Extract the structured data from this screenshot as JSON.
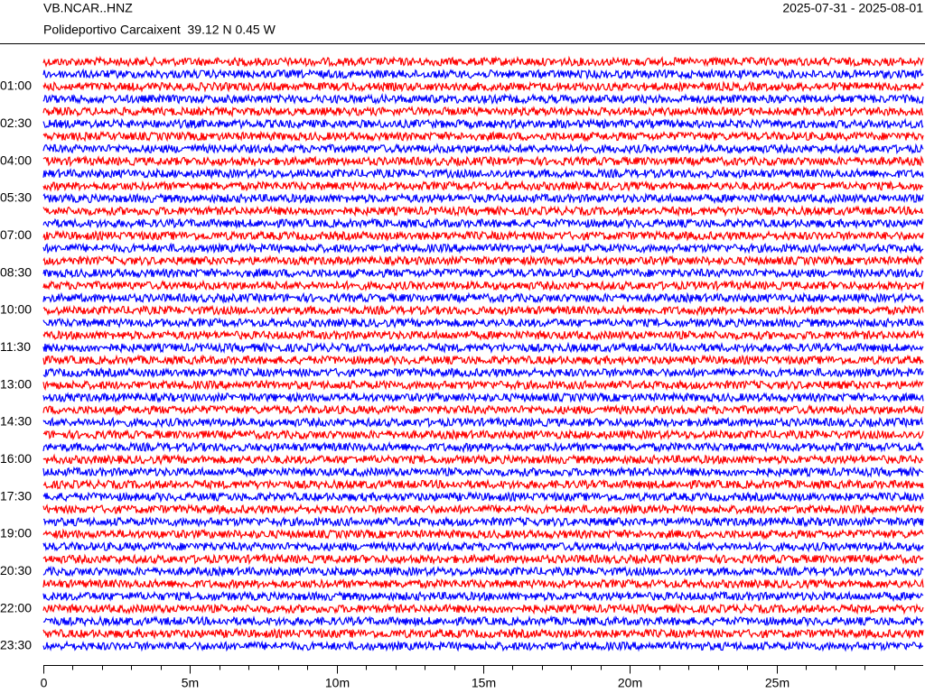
{
  "chart_data": {
    "type": "helicorder",
    "title": "VB.NCAR..HNZ",
    "subtitle": "Polideportivo Carcaixent  39.12 N 0.45 W",
    "date_range": "2025-07-31 - 2025-08-01",
    "xlim": [
      0,
      30
    ],
    "xticks": [
      0,
      {
        "value": 5,
        "label": "5m"
      },
      {
        "value": 10,
        "label": "10m"
      },
      {
        "value": 15,
        "label": "15m"
      },
      {
        "value": 20,
        "label": "20m"
      },
      {
        "value": 25,
        "label": "25m"
      }
    ],
    "xminorticks": [
      1,
      2,
      3,
      4,
      6,
      7,
      8,
      9,
      11,
      12,
      13,
      14,
      16,
      17,
      18,
      19,
      21,
      22,
      23,
      24,
      26,
      27,
      28,
      29
    ],
    "ylim": [
      0,
      1410
    ],
    "yticks": [
      {
        "value": 60,
        "label": "01:00"
      },
      {
        "value": 150,
        "label": "02:30"
      },
      {
        "value": 240,
        "label": "04:00"
      },
      {
        "value": 330,
        "label": "05:30"
      },
      {
        "value": 420,
        "label": "07:00"
      },
      {
        "value": 510,
        "label": "08:30"
      },
      {
        "value": 600,
        "label": "10:00"
      },
      {
        "value": 690,
        "label": "11:30"
      },
      {
        "value": 780,
        "label": "13:00"
      },
      {
        "value": 870,
        "label": "14:30"
      },
      {
        "value": 960,
        "label": "16:00"
      },
      {
        "value": 1050,
        "label": "17:30"
      },
      {
        "value": 1140,
        "label": "19:00"
      },
      {
        "value": 1230,
        "label": "20:30"
      },
      {
        "value": 1320,
        "label": "22:00"
      },
      {
        "value": 1410,
        "label": "23:30"
      }
    ],
    "trace_starts": [
      0,
      30,
      60,
      90,
      120,
      150,
      180,
      210,
      240,
      270,
      300,
      330,
      360,
      390,
      420,
      450,
      480,
      510,
      540,
      570,
      600,
      630,
      660,
      690,
      720,
      750,
      780,
      810,
      840,
      870,
      900,
      930,
      960,
      990,
      1020,
      1050,
      1080,
      1110,
      1140,
      1170,
      1200,
      1230,
      1260,
      1290,
      1320,
      1350,
      1380,
      1410
    ],
    "trace_colors": [
      "#ff0000",
      "#0000ff"
    ]
  }
}
